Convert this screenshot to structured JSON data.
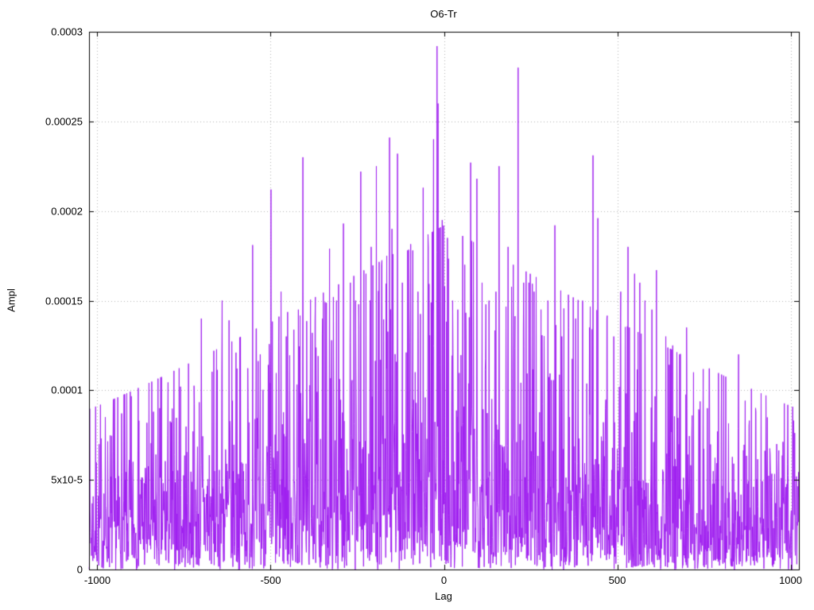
{
  "chart_data": {
    "type": "line",
    "title": "O6-Tr",
    "xlabel": "Lag",
    "ylabel": "Ampl",
    "xlim": [
      -1024,
      1024
    ],
    "ylim": [
      0,
      0.0003
    ],
    "grid": true,
    "legend": "none",
    "line_color": "#a020f0",
    "grid_color": "#b3b3b3",
    "border_color": "#000000",
    "background": "#ffffff",
    "x_ticks": [
      {
        "v": -1000,
        "label": "-1000"
      },
      {
        "v": -500,
        "label": "-500"
      },
      {
        "v": 0,
        "label": "0"
      },
      {
        "v": 500,
        "label": "500"
      },
      {
        "v": 1000,
        "label": "1000"
      }
    ],
    "y_ticks": [
      {
        "v": 0,
        "label": "0"
      },
      {
        "v": 5e-05,
        "label": "5x10-5"
      },
      {
        "v": 0.0001,
        "label": "0.0001"
      },
      {
        "v": 0.00015,
        "label": "0.00015"
      },
      {
        "v": 0.0002,
        "label": "0.0002"
      },
      {
        "v": 0.00025,
        "label": "0.00025"
      },
      {
        "v": 0.0003,
        "label": "0.0003"
      }
    ],
    "noise_model": {
      "seed": 7,
      "step": 1,
      "median_edge": 2.8e-05,
      "median_center": 6e-05,
      "tail_cap": 3.2,
      "envelope_power": 1.1
    },
    "peaks": [
      [
        -880,
        8.3e-05
      ],
      [
        -820,
        9e-05
      ],
      [
        -760,
        0.000102
      ],
      [
        -700,
        0.00014
      ],
      [
        -640,
        0.00015
      ],
      [
        -620,
        0.000139
      ],
      [
        -600,
        0.000121
      ],
      [
        -552,
        0.000181
      ],
      [
        -530,
        0.00012
      ],
      [
        -499,
        0.000212
      ],
      [
        -470,
        0.000155
      ],
      [
        -455,
        0.00013
      ],
      [
        -420,
        0.000145
      ],
      [
        -407,
        0.00023
      ],
      [
        -380,
        0.000132
      ],
      [
        -350,
        0.00014
      ],
      [
        -330,
        0.000179
      ],
      [
        -310,
        0.00015
      ],
      [
        -290,
        0.000193
      ],
      [
        -270,
        0.00016
      ],
      [
        -255,
        0.00015
      ],
      [
        -240,
        0.000222
      ],
      [
        -225,
        0.000165
      ],
      [
        -210,
        0.00018
      ],
      [
        -195,
        0.000225
      ],
      [
        -180,
        0.00017
      ],
      [
        -165,
        0.000175
      ],
      [
        -157,
        0.000241
      ],
      [
        -150,
        0.00019
      ],
      [
        -134,
        0.000232
      ],
      [
        -120,
        0.00016
      ],
      [
        -105,
        0.000178
      ],
      [
        -90,
        0.000178
      ],
      [
        -75,
        0.000155
      ],
      [
        -60,
        0.000213
      ],
      [
        -45,
        0.00018
      ],
      [
        -30,
        0.00024
      ],
      [
        -20,
        0.000292
      ],
      [
        -17,
        0.00026
      ],
      [
        -5,
        0.000195
      ],
      [
        10,
        0.000185
      ],
      [
        25,
        0.00015
      ],
      [
        40,
        0.000145
      ],
      [
        60,
        0.00017
      ],
      [
        77,
        0.000227
      ],
      [
        95,
        0.000218
      ],
      [
        110,
        0.00016
      ],
      [
        130,
        0.00015
      ],
      [
        150,
        0.000155
      ],
      [
        159,
        0.000225
      ],
      [
        185,
        0.00018
      ],
      [
        200,
        0.00017
      ],
      [
        214,
        0.00028
      ],
      [
        230,
        0.00016
      ],
      [
        245,
        0.00016
      ],
      [
        260,
        0.000155
      ],
      [
        280,
        0.000145
      ],
      [
        300,
        0.00015
      ],
      [
        320,
        0.000192
      ],
      [
        340,
        0.00013
      ],
      [
        360,
        0.000135
      ],
      [
        380,
        0.00014
      ],
      [
        400,
        0.00015
      ],
      [
        420,
        0.000135
      ],
      [
        430,
        0.000231
      ],
      [
        444,
        0.000196
      ],
      [
        470,
        0.00014
      ],
      [
        490,
        0.00013
      ],
      [
        510,
        0.000155
      ],
      [
        531,
        0.00018
      ],
      [
        550,
        0.000165
      ],
      [
        565,
        0.00016
      ],
      [
        580,
        0.00015
      ],
      [
        600,
        0.000145
      ],
      [
        613,
        0.000167
      ],
      [
        640,
        0.00013
      ],
      [
        660,
        0.000125
      ],
      [
        680,
        0.00012
      ],
      [
        700,
        0.000135
      ],
      [
        720,
        0.00011
      ],
      [
        760,
        9e-05
      ],
      [
        800,
        8.5e-05
      ],
      [
        850,
        0.00012
      ],
      [
        900,
        8.8e-05
      ],
      [
        960,
        7e-05
      ],
      [
        1010,
        6e-05
      ]
    ]
  }
}
